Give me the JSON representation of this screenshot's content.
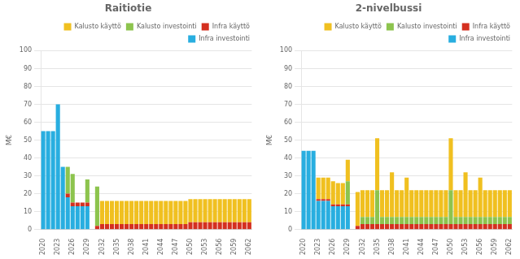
{
  "chart_data": [
    {
      "type": "bar",
      "title": "Raitiotie",
      "ylabel": "M€",
      "stacked": true,
      "grid": true,
      "legend": "upper right",
      "categories": [
        "2020",
        null,
        null,
        "2023",
        null,
        null,
        "2026",
        null,
        null,
        "2029",
        null,
        null,
        "2032",
        null,
        null,
        "2035",
        null,
        null,
        "2038",
        null,
        null,
        "2041",
        null,
        null,
        "2044",
        null,
        null,
        "2047",
        null,
        null,
        "2050",
        null,
        null,
        "2053",
        null,
        null,
        "2056",
        null,
        null,
        "2059",
        null,
        null,
        "2062"
      ],
      "ylim": [
        0,
        100
      ],
      "yticks": [
        0,
        10,
        20,
        30,
        40,
        50,
        60,
        70,
        80,
        90,
        100
      ],
      "series": [
        {
          "name": "Infra investointi",
          "color": "#28aee0",
          "values": [
            55,
            55,
            55,
            70,
            35,
            18,
            13,
            13,
            13,
            13,
            0,
            0,
            0,
            0,
            0,
            0,
            0,
            0,
            0,
            0,
            0,
            0,
            0,
            0,
            0,
            0,
            0,
            0,
            0,
            0,
            0,
            0,
            0,
            0,
            0,
            0,
            0,
            0,
            0,
            0,
            0,
            0,
            0
          ]
        },
        {
          "name": "Infra käyttö",
          "color": "#d43020",
          "values": [
            0,
            0,
            0,
            0,
            0,
            2,
            2,
            2,
            2,
            2,
            0,
            2,
            3,
            3,
            3,
            3,
            3,
            3,
            3,
            3,
            3,
            3,
            3,
            3,
            3,
            3,
            3,
            3,
            3,
            3,
            4,
            4,
            4,
            4,
            4,
            4,
            4,
            4,
            4,
            4,
            4,
            4,
            4
          ]
        },
        {
          "name": "Kalusto investointi",
          "color": "#8dc44e",
          "values": [
            0,
            0,
            0,
            0,
            0,
            15,
            16,
            0,
            0,
            13,
            0,
            22,
            0,
            0,
            0,
            0,
            0,
            0,
            0,
            0,
            0,
            0,
            0,
            0,
            0,
            0,
            0,
            0,
            0,
            0,
            0,
            0,
            0,
            0,
            0,
            0,
            0,
            0,
            0,
            0,
            0,
            0,
            0
          ]
        },
        {
          "name": "Kalusto käyttö",
          "color": "#f0c020",
          "values": [
            0,
            0,
            0,
            0,
            0,
            0,
            0,
            0,
            0,
            0,
            0,
            0,
            13,
            13,
            13,
            13,
            13,
            13,
            13,
            13,
            13,
            13,
            13,
            13,
            13,
            13,
            13,
            13,
            13,
            13,
            13,
            13,
            13,
            13,
            13,
            13,
            13,
            13,
            13,
            13,
            13,
            13,
            13
          ]
        }
      ]
    },
    {
      "type": "bar",
      "title": "2-nivelbussi",
      "ylabel": "M€",
      "stacked": true,
      "grid": true,
      "legend": "upper right",
      "categories": [
        "2020",
        null,
        null,
        "2023",
        null,
        null,
        "2026",
        null,
        null,
        "2029",
        null,
        null,
        "2032",
        null,
        null,
        "2035",
        null,
        null,
        "2038",
        null,
        null,
        "2041",
        null,
        null,
        "2044",
        null,
        null,
        "2047",
        null,
        null,
        "2050",
        null,
        null,
        "2053",
        null,
        null,
        "2056",
        null,
        null,
        "2059",
        null,
        null,
        "2062"
      ],
      "ylim": [
        0,
        100
      ],
      "yticks": [
        0,
        10,
        20,
        30,
        40,
        50,
        60,
        70,
        80,
        90,
        100
      ],
      "series": [
        {
          "name": "Infra investointi",
          "color": "#28aee0",
          "values": [
            44,
            44,
            44,
            16,
            16,
            16,
            13,
            13,
            13,
            13,
            0,
            0,
            0,
            0,
            0,
            0,
            0,
            0,
            0,
            0,
            0,
            0,
            0,
            0,
            0,
            0,
            0,
            0,
            0,
            0,
            0,
            0,
            0,
            0,
            0,
            0,
            0,
            0,
            0,
            0,
            0,
            0,
            0
          ]
        },
        {
          "name": "Infra käyttö",
          "color": "#d43020",
          "values": [
            0,
            0,
            0,
            1,
            1,
            1,
            1,
            1,
            1,
            1,
            0,
            2,
            3,
            3,
            3,
            3,
            3,
            3,
            3,
            3,
            3,
            3,
            3,
            3,
            3,
            3,
            3,
            3,
            3,
            3,
            3,
            3,
            3,
            3,
            3,
            3,
            3,
            3,
            3,
            3,
            3,
            3,
            3
          ]
        },
        {
          "name": "Kalusto investointi",
          "color": "#8dc44e",
          "values": [
            0,
            0,
            0,
            0,
            0,
            0,
            0,
            0,
            0,
            13,
            0,
            0,
            4,
            4,
            4,
            19,
            4,
            4,
            4,
            4,
            4,
            4,
            4,
            4,
            4,
            4,
            4,
            4,
            4,
            4,
            19,
            4,
            4,
            4,
            4,
            4,
            4,
            4,
            4,
            4,
            4,
            4,
            4
          ]
        },
        {
          "name": "Kalusto käyttö",
          "color": "#f0c020",
          "values": [
            0,
            0,
            0,
            12,
            12,
            12,
            13,
            12,
            12,
            12,
            0,
            19,
            15,
            15,
            15,
            29,
            15,
            15,
            25,
            15,
            15,
            22,
            15,
            15,
            15,
            15,
            15,
            15,
            15,
            15,
            29,
            15,
            15,
            25,
            15,
            15,
            22,
            15,
            15,
            15,
            15,
            15,
            15
          ]
        }
      ]
    }
  ]
}
